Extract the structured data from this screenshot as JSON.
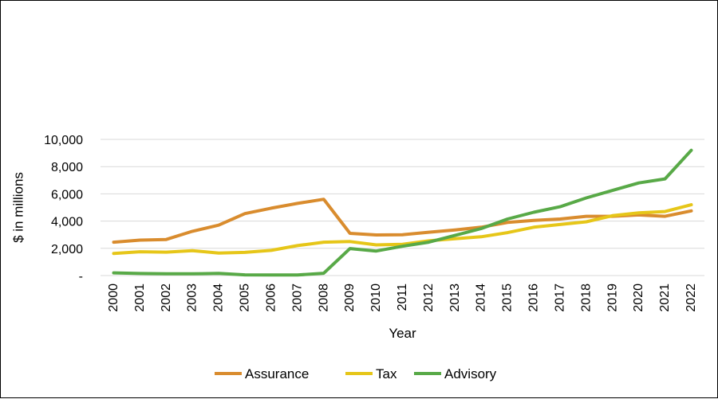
{
  "chart_data": {
    "type": "line",
    "title": "",
    "xlabel": "Year",
    "ylabel": "$ in millions",
    "categories": [
      "2000",
      "2001",
      "2002",
      "2003",
      "2004",
      "2005",
      "2006",
      "2007",
      "2008",
      "2009",
      "2010",
      "2011",
      "2012",
      "2013",
      "2014",
      "2015",
      "2016",
      "2017",
      "2018",
      "2019",
      "2020",
      "2021",
      "2022"
    ],
    "ylim": [
      0,
      10000
    ],
    "yticks": [
      0,
      2000,
      4000,
      6000,
      8000,
      10000
    ],
    "ytick_labels": [
      "-",
      "2,000",
      "4,000",
      "6,000",
      "8,000",
      "10,000"
    ],
    "grid": "horizontal",
    "legend_position": "bottom",
    "series": [
      {
        "name": "Assurance",
        "color": "#d98c2e",
        "values": [
          2450,
          2600,
          2650,
          3250,
          3700,
          4550,
          4950,
          5300,
          5600,
          3100,
          2980,
          3000,
          3180,
          3350,
          3550,
          3900,
          4050,
          4150,
          4350,
          4350,
          4450,
          4350,
          4750
        ]
      },
      {
        "name": "Tax",
        "color": "#e6c619",
        "values": [
          1620,
          1750,
          1720,
          1830,
          1650,
          1700,
          1850,
          2200,
          2450,
          2500,
          2250,
          2300,
          2550,
          2700,
          2850,
          3150,
          3550,
          3750,
          3950,
          4400,
          4600,
          4700,
          5200
        ]
      },
      {
        "name": "Advisory",
        "color": "#58a947",
        "values": [
          200,
          150,
          130,
          130,
          160,
          50,
          40,
          40,
          170,
          1980,
          1800,
          2150,
          2450,
          2950,
          3450,
          4150,
          4650,
          5050,
          5700,
          6250,
          6800,
          7100,
          9200
        ]
      }
    ]
  }
}
